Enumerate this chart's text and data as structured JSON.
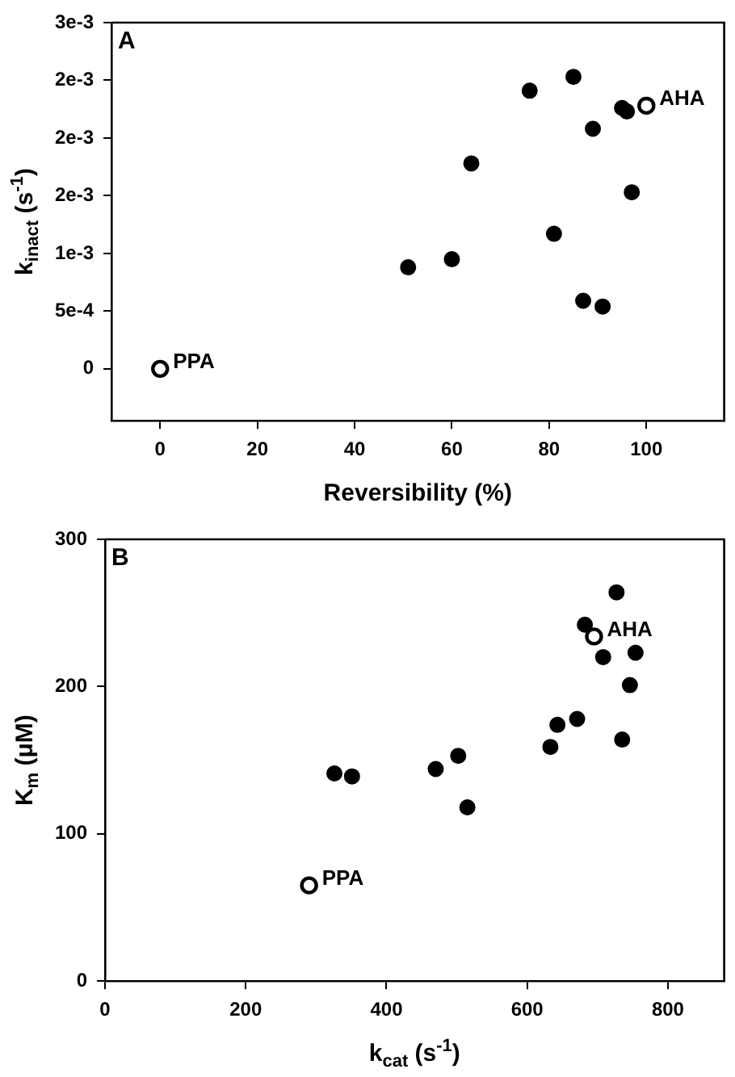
{
  "chart_data": [
    {
      "type": "scatter",
      "xlabel": "Reversibility (%)",
      "ylabel": "k$_{inact}$ (s$^{-1}$)",
      "xlim": [
        -10,
        116
      ],
      "ylim": [
        -0.00045,
        0.003
      ],
      "xticks": [
        0,
        20,
        40,
        60,
        80,
        100
      ],
      "yticks": [
        0,
        {
          "value": 0.0005,
          "label": "5e-4"
        },
        {
          "value": 0.001,
          "label": "1e-3"
        },
        {
          "value": 0.0015,
          "label": "2e-3"
        },
        {
          "value": 0.002,
          "label": "2e-3"
        },
        {
          "value": 0.0025,
          "label": "2e-3"
        },
        {
          "value": 0.003,
          "label": "3e-3"
        }
      ],
      "grid": false,
      "legend": false,
      "marker": "circle",
      "series": [
        {
          "color": "#000000",
          "x": [
            51,
            60,
            64,
            76,
            81,
            85,
            87,
            89,
            91,
            95,
            96,
            97
          ],
          "values": [
            0.00088,
            0.00095,
            0.00178,
            0.00241,
            0.00117,
            0.00253,
            0.00059,
            0.00208,
            0.00054,
            0.00226,
            0.00223,
            0.00153
          ]
        },
        {
          "name": "PPA",
          "color": "#000000",
          "x": [
            0
          ],
          "values": [
            0
          ]
        },
        {
          "name": "AHA",
          "color": "#000000",
          "x": [
            100
          ],
          "values": [
            0.00228
          ]
        }
      ],
      "annotations": [
        "A"
      ]
    },
    {
      "type": "scatter",
      "xlabel": "k$_{cat}$ (s$^{-1}$)",
      "ylabel": "K$_{m}$ (μM)",
      "xlim": [
        0,
        880
      ],
      "ylim": [
        0,
        300
      ],
      "xticks": [
        0,
        200,
        400,
        600,
        800
      ],
      "yticks": [
        0,
        100,
        200,
        300
      ],
      "grid": false,
      "legend": false,
      "marker": "circle",
      "series": [
        {
          "color": "#000000",
          "x": [
            326,
            351,
            470,
            502,
            515,
            633,
            643,
            671,
            682,
            708,
            727,
            735,
            746,
            754
          ],
          "values": [
            141,
            139,
            144,
            153,
            118,
            159,
            174,
            178,
            242,
            220,
            264,
            164,
            201,
            223
          ]
        },
        {
          "name": "PPA",
          "color": "#000000",
          "x": [
            290
          ],
          "values": [
            65
          ]
        },
        {
          "name": "AHA",
          "color": "#000000",
          "x": [
            695
          ],
          "values": [
            234
          ]
        }
      ],
      "annotations": [
        "B"
      ]
    }
  ]
}
